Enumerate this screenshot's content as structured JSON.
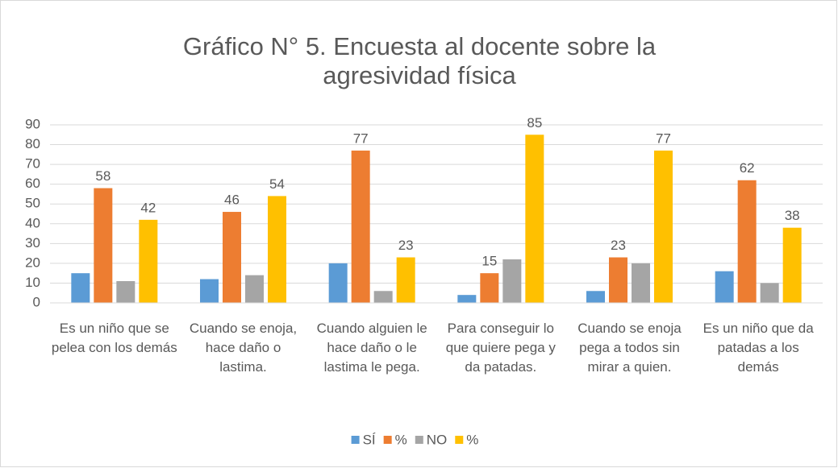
{
  "chart_data": {
    "type": "bar",
    "title": "Gráfico N° 5. Encuesta al docente sobre la agresividad física",
    "categories": [
      "Es un niño que se pelea con los demás",
      "Cuando se enoja, hace daño o lastima.",
      "Cuando alguien le hace daño o le lastima le pega.",
      "Para conseguir lo que quiere pega y da patadas.",
      "Cuando se enoja pega a todos sin mirar a quien.",
      "Es un niño que da patadas a los demás"
    ],
    "series": [
      {
        "name": "SÍ",
        "color": "#5b9bd5",
        "values": [
          15,
          12,
          20,
          4,
          6,
          16
        ],
        "data_labels": false
      },
      {
        "name": "%",
        "color": "#ed7d31",
        "values": [
          58,
          46,
          77,
          15,
          23,
          62
        ],
        "data_labels": true
      },
      {
        "name": "NO",
        "color": "#a5a5a5",
        "values": [
          11,
          14,
          6,
          22,
          20,
          10
        ],
        "data_labels": false
      },
      {
        "name": "%",
        "color": "#ffc000",
        "values": [
          42,
          54,
          23,
          85,
          77,
          38
        ],
        "data_labels": true
      }
    ],
    "ylim": [
      0,
      90
    ],
    "yticks": [
      0,
      10,
      20,
      30,
      40,
      50,
      60,
      70,
      80,
      90
    ],
    "grid": true,
    "legend": "bottom"
  }
}
